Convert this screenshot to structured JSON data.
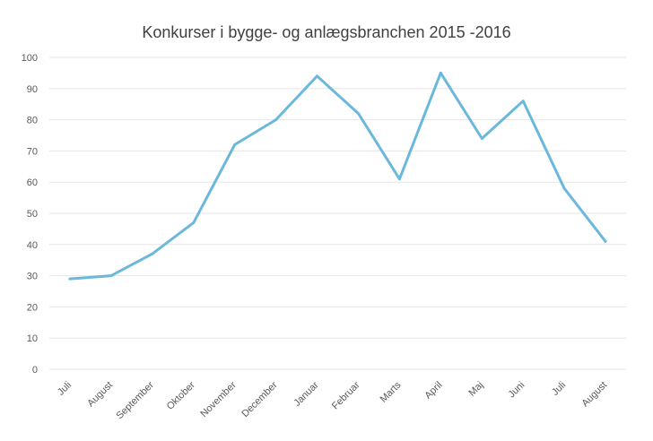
{
  "chart_data": {
    "type": "line",
    "title": "Konkurser i bygge- og anlægsbranchen 2015 -2016",
    "xlabel": "",
    "ylabel": "",
    "ylim": [
      0,
      100
    ],
    "yticks": [
      0,
      10,
      20,
      30,
      40,
      50,
      60,
      70,
      80,
      90,
      100
    ],
    "categories": [
      "Juli",
      "August",
      "September",
      "Oktober",
      "November",
      "December",
      "Januar",
      "Februar",
      "Marts",
      "April",
      "Maj",
      "Juni",
      "Juli",
      "August"
    ],
    "series": [
      {
        "values": [
          29,
          30,
          37,
          47,
          72,
          80,
          94,
          82,
          61,
          95,
          74,
          86,
          58,
          41
        ],
        "color": "#6BB8DC"
      }
    ],
    "grid": "horizontal",
    "gridline_color": "#e6e6e6",
    "legend": "none"
  }
}
